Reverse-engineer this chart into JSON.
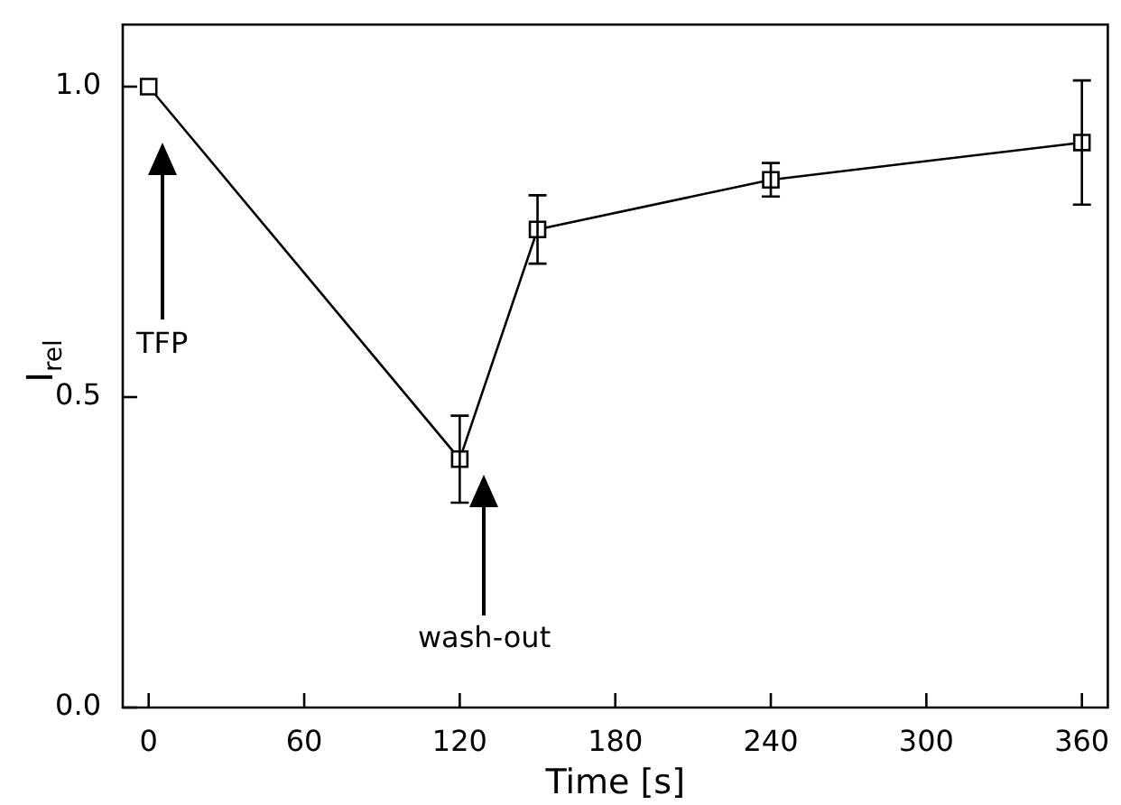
{
  "chart_data": {
    "type": "line",
    "xlabel": "Time [s]",
    "ylabel": "I$_{rel}$",
    "x": [
      0,
      120,
      150,
      240,
      360
    ],
    "series": [
      {
        "color": "#000000",
        "values": [
          1.0,
          0.4,
          0.77,
          0.85,
          0.91
        ],
        "errors": [
          null,
          0.07,
          0.055,
          0.027,
          0.1
        ]
      }
    ],
    "xlim": [
      -10,
      370
    ],
    "xticks": [
      0,
      60,
      120,
      180,
      240,
      300,
      360
    ],
    "ylim": [
      0,
      1.1
    ],
    "yticks": [
      {
        "value": 0,
        "label": "0.0"
      },
      {
        "value": 0.5,
        "label": "0.5"
      },
      {
        "value": 1,
        "label": "1.0"
      }
    ],
    "marker": "square",
    "line_style": "solid",
    "grid": false,
    "legend": false,
    "annotations": [
      "TFP",
      "wash-out"
    ]
  }
}
